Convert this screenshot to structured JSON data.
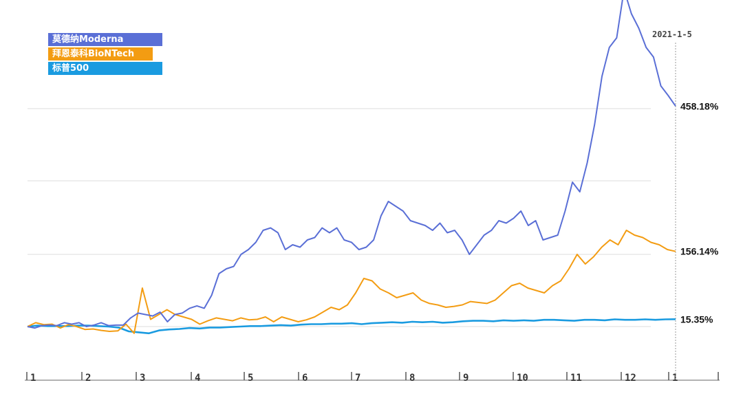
{
  "chart_data": {
    "type": "line",
    "title": "",
    "xlabel": "",
    "ylabel": "",
    "date_marker": "2021-1-5",
    "x_ticks": [
      "1",
      "2",
      "3",
      "4",
      "5",
      "6",
      "7",
      "8",
      "9",
      "10",
      "11",
      "12",
      "1"
    ],
    "grid": "horizontal",
    "legend_position": "top-left",
    "series": [
      {
        "name": "莫德纳Moderna",
        "color": "#5a6fd6",
        "end_label": "458.18%",
        "values": [
          0,
          -3,
          2,
          3,
          2,
          8,
          5,
          8,
          0,
          3,
          8,
          2,
          3,
          3,
          18,
          28,
          25,
          22,
          30,
          10,
          25,
          28,
          38,
          43,
          38,
          65,
          110,
          120,
          125,
          150,
          160,
          175,
          200,
          205,
          195,
          160,
          170,
          165,
          180,
          185,
          205,
          195,
          205,
          180,
          175,
          160,
          165,
          180,
          230,
          260,
          250,
          240,
          220,
          215,
          210,
          200,
          215,
          195,
          200,
          180,
          150,
          170,
          190,
          200,
          220,
          215,
          225,
          240,
          210,
          220,
          180,
          185,
          190,
          240,
          300,
          280,
          340,
          420,
          520,
          580,
          600,
          700,
          650,
          620,
          580,
          560,
          500,
          480,
          458.18
        ]
      },
      {
        "name": "拜恩泰科BioNTech",
        "color": "#f39c12",
        "end_label": "156.14%",
        "values": [
          0,
          8,
          4,
          5,
          -3,
          4,
          0,
          -6,
          -5,
          -8,
          -10,
          -9,
          5,
          -14,
          80,
          15,
          25,
          35,
          25,
          20,
          15,
          5,
          12,
          18,
          15,
          12,
          18,
          14,
          15,
          20,
          10,
          20,
          15,
          10,
          14,
          20,
          30,
          40,
          35,
          45,
          70,
          100,
          95,
          78,
          70,
          60,
          65,
          70,
          55,
          48,
          45,
          40,
          42,
          45,
          52,
          50,
          48,
          55,
          70,
          85,
          90,
          80,
          75,
          70,
          85,
          95,
          120,
          150,
          130,
          145,
          165,
          180,
          170,
          200,
          190,
          185,
          175,
          170,
          160,
          156.14
        ]
      },
      {
        "name": "标普500",
        "color": "#1a9be0",
        "end_label": "15.35%",
        "values": [
          0,
          2,
          1,
          1,
          1,
          2,
          2,
          1,
          0,
          -2,
          -10,
          -12,
          -14,
          -8,
          -6,
          -5,
          -3,
          -4,
          -2,
          -2,
          -1,
          0,
          1,
          1,
          2,
          3,
          2,
          4,
          5,
          5,
          6,
          6,
          7,
          5,
          7,
          8,
          9,
          8,
          10,
          9,
          10,
          8,
          9,
          11,
          12,
          12,
          11,
          13,
          12,
          13,
          12,
          14,
          14,
          13,
          12,
          14,
          14,
          13,
          15,
          14,
          14,
          15,
          14,
          15,
          15.35
        ]
      }
    ]
  }
}
